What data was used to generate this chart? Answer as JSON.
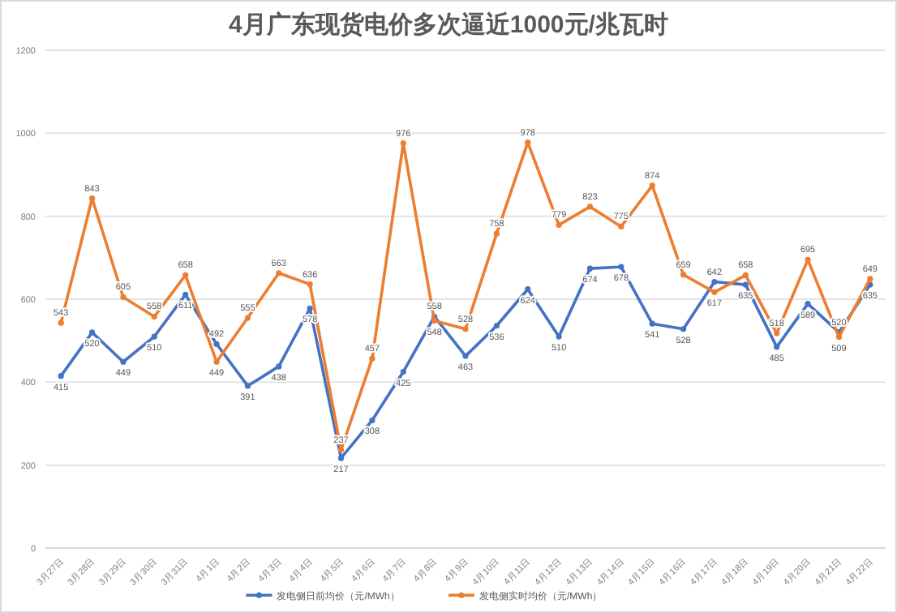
{
  "chart_data": {
    "type": "line",
    "title": "4月广东现货电价多次逼近1000元/兆瓦时",
    "categories": [
      "3月27日",
      "3月28日",
      "3月29日",
      "3月30日",
      "3月31日",
      "4月1日",
      "4月2日",
      "4月3日",
      "4月4日",
      "4月5日",
      "4月6日",
      "4月7日",
      "4月8日",
      "4月9日",
      "4月10日",
      "4月11日",
      "4月12日",
      "4月13日",
      "4月14日",
      "4月15日",
      "4月16日",
      "4月17日",
      "4月18日",
      "4月19日",
      "4月20日",
      "4月21日",
      "4月22日"
    ],
    "series": [
      {
        "name": "发电侧日前均价（元/MWh）",
        "color": "#4472c4",
        "values": [
          415,
          520,
          449,
          510,
          611,
          492,
          391,
          438,
          578,
          217,
          308,
          425,
          558,
          463,
          536,
          624,
          510,
          674,
          678,
          541,
          528,
          642,
          635,
          485,
          589,
          520,
          635
        ]
      },
      {
        "name": "发电侧实时均价（元/MWh）",
        "color": "#ed7d31",
        "values": [
          543,
          843,
          605,
          558,
          658,
          449,
          555,
          663,
          636,
          237,
          457,
          976,
          548,
          528,
          758,
          978,
          779,
          823,
          775,
          874,
          659,
          617,
          658,
          518,
          695,
          509,
          649
        ]
      }
    ],
    "ylim": [
      0,
      1200
    ],
    "yticks": [
      0,
      200,
      400,
      600,
      800,
      1000,
      1200
    ],
    "grid": "y",
    "legend": "bottom",
    "marker": "circle",
    "line_style": "solid",
    "data_labels": true
  }
}
